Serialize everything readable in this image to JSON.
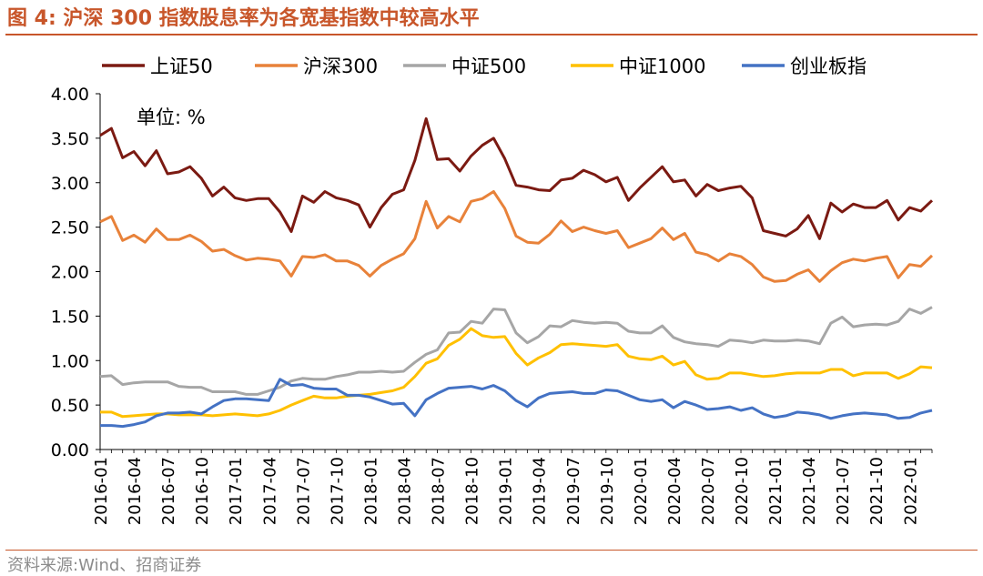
{
  "figure": {
    "title": "图 4:  沪深 300 指数股息率为各宽基指数中较高水平",
    "source": "资料来源:Wind、招商证券",
    "unit_note": "单位:  %"
  },
  "colors": {
    "accent": "#c8562a",
    "上证50": "#7b1a12",
    "沪深300": "#e8823a",
    "中证500": "#a6a6a6",
    "中证1000": "#ffc000",
    "创业板指": "#4472c4"
  },
  "chart_data": {
    "type": "line",
    "ylim": [
      0,
      4
    ],
    "yticks": [
      "0.00",
      "0.50",
      "1.00",
      "1.50",
      "2.00",
      "2.50",
      "3.00",
      "3.50",
      "4.00"
    ],
    "xtick_labels": [
      "2016-01",
      "2016-04",
      "2016-07",
      "2016-10",
      "2017-01",
      "2017-04",
      "2017-07",
      "2017-10",
      "2018-01",
      "2018-04",
      "2018-07",
      "2018-10",
      "2019-01",
      "2019-04",
      "2019-07",
      "2019-10",
      "2020-01",
      "2020-04",
      "2020-07",
      "2020-10",
      "2021-01",
      "2021-04",
      "2021-07",
      "2021-10",
      "2022-01"
    ],
    "x_start": "2016-01",
    "x_end": "2022-03",
    "legend_position": "top",
    "grid": false,
    "series": [
      {
        "name": "上证50",
        "values": [
          3.53,
          3.61,
          3.28,
          3.35,
          3.19,
          3.36,
          3.1,
          3.12,
          3.18,
          3.05,
          2.85,
          2.95,
          2.83,
          2.8,
          2.82,
          2.82,
          2.67,
          2.45,
          2.85,
          2.78,
          2.9,
          2.83,
          2.8,
          2.75,
          2.5,
          2.72,
          2.87,
          2.92,
          3.25,
          3.72,
          3.26,
          3.27,
          3.13,
          3.3,
          3.42,
          3.5,
          3.27,
          2.97,
          2.95,
          2.92,
          2.91,
          3.03,
          3.05,
          3.14,
          3.09,
          3.01,
          3.06,
          2.8,
          2.94,
          3.06,
          3.18,
          3.01,
          3.03,
          2.85,
          2.98,
          2.91,
          2.94,
          2.96,
          2.83,
          2.46,
          2.43,
          2.4,
          2.48,
          2.63,
          2.37,
          2.77,
          2.67,
          2.76,
          2.72,
          2.72,
          2.8,
          2.58,
          2.72,
          2.68,
          2.8
        ]
      },
      {
        "name": "沪深300",
        "values": [
          2.56,
          2.62,
          2.35,
          2.41,
          2.33,
          2.48,
          2.36,
          2.36,
          2.41,
          2.34,
          2.23,
          2.25,
          2.18,
          2.13,
          2.15,
          2.14,
          2.12,
          1.95,
          2.17,
          2.16,
          2.19,
          2.12,
          2.12,
          2.07,
          1.95,
          2.07,
          2.14,
          2.2,
          2.37,
          2.79,
          2.49,
          2.62,
          2.56,
          2.79,
          2.82,
          2.9,
          2.71,
          2.4,
          2.33,
          2.32,
          2.42,
          2.57,
          2.45,
          2.5,
          2.46,
          2.43,
          2.46,
          2.27,
          2.32,
          2.37,
          2.49,
          2.36,
          2.43,
          2.22,
          2.19,
          2.12,
          2.2,
          2.17,
          2.08,
          1.94,
          1.89,
          1.9,
          1.97,
          2.02,
          1.89,
          2.01,
          2.1,
          2.14,
          2.12,
          2.15,
          2.17,
          1.93,
          2.08,
          2.06,
          2.18
        ]
      },
      {
        "name": "中证500",
        "values": [
          0.82,
          0.83,
          0.73,
          0.75,
          0.76,
          0.76,
          0.76,
          0.71,
          0.7,
          0.7,
          0.65,
          0.65,
          0.65,
          0.62,
          0.62,
          0.66,
          0.7,
          0.77,
          0.8,
          0.79,
          0.79,
          0.82,
          0.84,
          0.87,
          0.87,
          0.88,
          0.87,
          0.88,
          0.98,
          1.07,
          1.12,
          1.31,
          1.32,
          1.44,
          1.42,
          1.58,
          1.57,
          1.31,
          1.2,
          1.27,
          1.39,
          1.38,
          1.45,
          1.43,
          1.42,
          1.43,
          1.42,
          1.33,
          1.31,
          1.31,
          1.39,
          1.26,
          1.21,
          1.19,
          1.18,
          1.16,
          1.23,
          1.22,
          1.2,
          1.23,
          1.22,
          1.22,
          1.23,
          1.22,
          1.19,
          1.42,
          1.49,
          1.38,
          1.4,
          1.41,
          1.4,
          1.44,
          1.58,
          1.53,
          1.6
        ]
      },
      {
        "name": "中证1000",
        "values": [
          0.42,
          0.42,
          0.37,
          0.38,
          0.39,
          0.4,
          0.4,
          0.39,
          0.39,
          0.39,
          0.38,
          0.39,
          0.4,
          0.39,
          0.38,
          0.4,
          0.44,
          0.5,
          0.55,
          0.6,
          0.58,
          0.58,
          0.6,
          0.61,
          0.62,
          0.64,
          0.66,
          0.7,
          0.82,
          0.97,
          1.02,
          1.17,
          1.24,
          1.36,
          1.28,
          1.26,
          1.27,
          1.08,
          0.95,
          1.03,
          1.09,
          1.18,
          1.19,
          1.18,
          1.17,
          1.16,
          1.18,
          1.05,
          1.02,
          1.01,
          1.05,
          0.95,
          0.99,
          0.84,
          0.79,
          0.8,
          0.86,
          0.86,
          0.84,
          0.82,
          0.83,
          0.85,
          0.86,
          0.86,
          0.86,
          0.9,
          0.9,
          0.83,
          0.86,
          0.86,
          0.86,
          0.8,
          0.85,
          0.93,
          0.92
        ]
      },
      {
        "name": "创业板指",
        "values": [
          0.27,
          0.27,
          0.26,
          0.28,
          0.31,
          0.38,
          0.41,
          0.41,
          0.42,
          0.4,
          0.48,
          0.55,
          0.57,
          0.57,
          0.56,
          0.55,
          0.79,
          0.72,
          0.73,
          0.69,
          0.68,
          0.68,
          0.61,
          0.61,
          0.59,
          0.55,
          0.51,
          0.52,
          0.38,
          0.56,
          0.63,
          0.69,
          0.7,
          0.71,
          0.68,
          0.72,
          0.66,
          0.55,
          0.48,
          0.58,
          0.63,
          0.64,
          0.65,
          0.63,
          0.63,
          0.67,
          0.66,
          0.61,
          0.56,
          0.54,
          0.56,
          0.47,
          0.54,
          0.5,
          0.45,
          0.46,
          0.48,
          0.44,
          0.47,
          0.4,
          0.36,
          0.38,
          0.42,
          0.41,
          0.39,
          0.35,
          0.38,
          0.4,
          0.41,
          0.4,
          0.39,
          0.35,
          0.36,
          0.41,
          0.44
        ]
      }
    ]
  }
}
